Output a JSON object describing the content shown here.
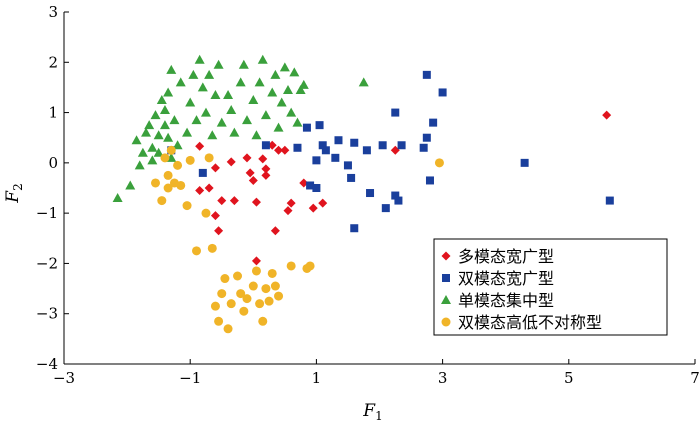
{
  "chart_data": {
    "type": "scatter",
    "title": "",
    "xlabel": "F",
    "xlabel_sub": "1",
    "ylabel": "F",
    "ylabel_sub": "2",
    "xlim": [
      -3,
      7
    ],
    "ylim": [
      -4,
      3
    ],
    "xticks": [
      -3,
      -1,
      1,
      3,
      5,
      7
    ],
    "yticks": [
      -4,
      -3,
      -2,
      -1,
      0,
      1,
      2,
      3
    ],
    "grid": false,
    "legend_position": "bottom-right",
    "series": [
      {
        "name": "多模态宽广型",
        "marker": "diamond",
        "color": "#e0141e",
        "points": [
          [
            -0.85,
            0.33
          ],
          [
            -0.6,
            -0.1
          ],
          [
            -0.85,
            -0.55
          ],
          [
            -0.7,
            -0.5
          ],
          [
            -0.6,
            -1.05
          ],
          [
            -0.55,
            -1.35
          ],
          [
            -0.5,
            -0.75
          ],
          [
            -0.35,
            0.02
          ],
          [
            -0.3,
            -0.75
          ],
          [
            -0.1,
            0.1
          ],
          [
            0.0,
            -0.35
          ],
          [
            -0.05,
            -0.2
          ],
          [
            0.05,
            -0.78
          ],
          [
            0.15,
            0.08
          ],
          [
            0.2,
            -0.25
          ],
          [
            0.3,
            0.35
          ],
          [
            0.35,
            -1.35
          ],
          [
            0.4,
            0.25
          ],
          [
            0.55,
            -0.95
          ],
          [
            0.6,
            -0.8
          ],
          [
            0.8,
            -0.4
          ],
          [
            0.95,
            -0.9
          ],
          [
            1.1,
            -0.8
          ],
          [
            0.05,
            -1.95
          ],
          [
            0.2,
            -0.12
          ],
          [
            0.5,
            0.25
          ],
          [
            2.25,
            0.25
          ],
          [
            5.6,
            0.95
          ]
        ]
      },
      {
        "name": "双模态宽广型",
        "marker": "square",
        "color": "#1a3f9c",
        "points": [
          [
            -1.3,
            0.25
          ],
          [
            -0.8,
            -0.2
          ],
          [
            0.2,
            0.35
          ],
          [
            0.7,
            0.3
          ],
          [
            0.85,
            0.7
          ],
          [
            0.9,
            -0.45
          ],
          [
            1.0,
            0.05
          ],
          [
            1.0,
            -0.5
          ],
          [
            1.05,
            0.75
          ],
          [
            1.1,
            0.35
          ],
          [
            1.15,
            0.25
          ],
          [
            1.3,
            0.1
          ],
          [
            1.35,
            0.45
          ],
          [
            1.5,
            -0.05
          ],
          [
            1.6,
            0.4
          ],
          [
            1.55,
            -0.3
          ],
          [
            1.6,
            -1.3
          ],
          [
            1.8,
            0.25
          ],
          [
            1.85,
            -0.6
          ],
          [
            2.05,
            0.35
          ],
          [
            2.1,
            -0.9
          ],
          [
            2.25,
            -0.65
          ],
          [
            2.25,
            1.0
          ],
          [
            2.35,
            0.35
          ],
          [
            2.3,
            -0.75
          ],
          [
            2.7,
            0.3
          ],
          [
            2.75,
            0.5
          ],
          [
            2.75,
            1.75
          ],
          [
            2.8,
            -0.35
          ],
          [
            2.85,
            0.8
          ],
          [
            3.0,
            1.4
          ],
          [
            4.3,
            0.0
          ],
          [
            5.65,
            -0.75
          ]
        ]
      },
      {
        "name": "单模态集中型",
        "marker": "triangle",
        "color": "#3aa03c",
        "points": [
          [
            -2.15,
            -0.7
          ],
          [
            -1.95,
            -0.45
          ],
          [
            -1.85,
            0.45
          ],
          [
            -1.8,
            -0.05
          ],
          [
            -1.75,
            0.2
          ],
          [
            -1.7,
            0.6
          ],
          [
            -1.65,
            0.75
          ],
          [
            -1.6,
            0.3
          ],
          [
            -1.6,
            0.05
          ],
          [
            -1.55,
            0.95
          ],
          [
            -1.5,
            0.55
          ],
          [
            -1.5,
            0.2
          ],
          [
            -1.45,
            1.25
          ],
          [
            -1.4,
            1.05
          ],
          [
            -1.4,
            0.75
          ],
          [
            -1.35,
            0.5
          ],
          [
            -1.35,
            1.4
          ],
          [
            -1.3,
            1.85
          ],
          [
            -1.3,
            0.1
          ],
          [
            -1.25,
            0.85
          ],
          [
            -1.2,
            0.35
          ],
          [
            -1.15,
            1.6
          ],
          [
            -1.05,
            0.6
          ],
          [
            -1.0,
            1.2
          ],
          [
            -0.95,
            1.75
          ],
          [
            -0.9,
            0.85
          ],
          [
            -0.85,
            2.05
          ],
          [
            -0.8,
            1.5
          ],
          [
            -0.75,
            1.0
          ],
          [
            -0.7,
            1.75
          ],
          [
            -0.65,
            0.55
          ],
          [
            -0.6,
            1.35
          ],
          [
            -0.55,
            1.95
          ],
          [
            -0.5,
            0.8
          ],
          [
            -0.4,
            1.35
          ],
          [
            -0.35,
            1.05
          ],
          [
            -0.3,
            0.6
          ],
          [
            -0.2,
            1.6
          ],
          [
            -0.15,
            1.95
          ],
          [
            -0.1,
            0.85
          ],
          [
            0.0,
            1.25
          ],
          [
            0.05,
            0.55
          ],
          [
            0.1,
            1.6
          ],
          [
            0.15,
            2.05
          ],
          [
            0.2,
            0.95
          ],
          [
            0.3,
            1.4
          ],
          [
            0.35,
            1.75
          ],
          [
            0.4,
            0.7
          ],
          [
            0.45,
            1.2
          ],
          [
            0.5,
            1.9
          ],
          [
            0.55,
            1.45
          ],
          [
            0.6,
            1.0
          ],
          [
            0.65,
            1.8
          ],
          [
            0.7,
            0.8
          ],
          [
            0.75,
            1.45
          ],
          [
            0.8,
            1.55
          ],
          [
            1.75,
            1.6
          ]
        ]
      },
      {
        "name": "双模态高低不对称型",
        "marker": "circle",
        "color": "#f0b428",
        "points": [
          [
            -1.55,
            -0.4
          ],
          [
            -1.45,
            -0.75
          ],
          [
            -1.4,
            0.1
          ],
          [
            -1.35,
            -0.25
          ],
          [
            -1.35,
            -0.5
          ],
          [
            -1.3,
            0.25
          ],
          [
            -1.25,
            -0.4
          ],
          [
            -1.2,
            -0.05
          ],
          [
            -1.15,
            -0.45
          ],
          [
            -1.05,
            -0.85
          ],
          [
            -1.0,
            0.05
          ],
          [
            -0.9,
            -1.75
          ],
          [
            -0.75,
            -1.0
          ],
          [
            -0.7,
            0.1
          ],
          [
            -0.65,
            -1.7
          ],
          [
            -0.6,
            -2.85
          ],
          [
            -0.55,
            -3.15
          ],
          [
            -0.5,
            -2.6
          ],
          [
            -0.45,
            -2.3
          ],
          [
            -0.4,
            -3.3
          ],
          [
            -0.35,
            -2.8
          ],
          [
            -0.25,
            -2.25
          ],
          [
            -0.2,
            -2.6
          ],
          [
            -0.15,
            -2.95
          ],
          [
            -0.1,
            -2.7
          ],
          [
            0.0,
            -2.45
          ],
          [
            0.05,
            -2.15
          ],
          [
            0.1,
            -2.8
          ],
          [
            0.15,
            -3.15
          ],
          [
            0.2,
            -2.5
          ],
          [
            0.25,
            -2.75
          ],
          [
            0.3,
            -2.2
          ],
          [
            0.35,
            -2.45
          ],
          [
            0.4,
            -2.65
          ],
          [
            0.6,
            -2.05
          ],
          [
            0.85,
            -2.1
          ],
          [
            0.9,
            -2.05
          ],
          [
            2.95,
            0.0
          ]
        ]
      }
    ]
  }
}
